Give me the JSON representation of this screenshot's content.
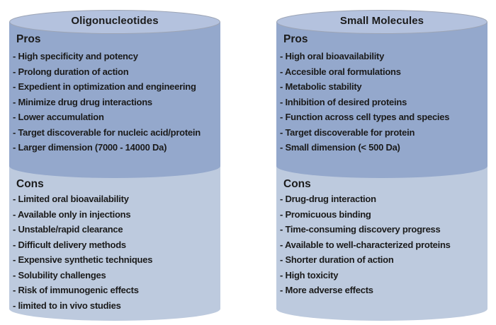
{
  "figure": {
    "background": "#ffffff",
    "colors": {
      "lid": "#b4c2de",
      "pros_body": "#94a8cc",
      "cons_body": "#bdcade",
      "lid_outline": "#9da5b6",
      "text": "#1b1b1b"
    },
    "panels": [
      {
        "id": "oligonucleotides",
        "title": "Oligonucleotides",
        "pros_label": "Pros",
        "pros_items": [
          "- High specificity and potency",
          "- Prolong duration of action",
          "- Expedient in optimization and engineering",
          "- Minimize drug drug interactions",
          "- Lower accumulation",
          "- Target discoverable for nucleic acid/protein",
          "- Larger dimension (7000 - 14000 Da)"
        ],
        "cons_label": "Cons",
        "cons_items": [
          "- Limited oral bioavailability",
          "- Available only in injections",
          "- Unstable/rapid clearance",
          "- Difficult delivery methods",
          "- Expensive synthetic techniques",
          "- Solubility challenges",
          "- Risk of immunogenic effects",
          "- limited to in vivo studies"
        ]
      },
      {
        "id": "small-molecules",
        "title": "Small Molecules",
        "pros_label": "Pros",
        "pros_items": [
          "- High oral bioavailability",
          "- Accesible oral formulations",
          "- Metabolic stability",
          "- Inhibition of desired proteins",
          "- Function across cell types and species",
          "- Target discoverable for protein",
          "- Small dimension (< 500 Da)"
        ],
        "cons_label": "Cons",
        "cons_items": [
          "- Drug-drug interaction",
          "- Promicuous binding",
          "- Time-consuming discovery progress",
          "- Available to well-characterized proteins",
          "- Shorter duration of action",
          "- High toxicity",
          "- More adverse effects"
        ]
      }
    ]
  }
}
